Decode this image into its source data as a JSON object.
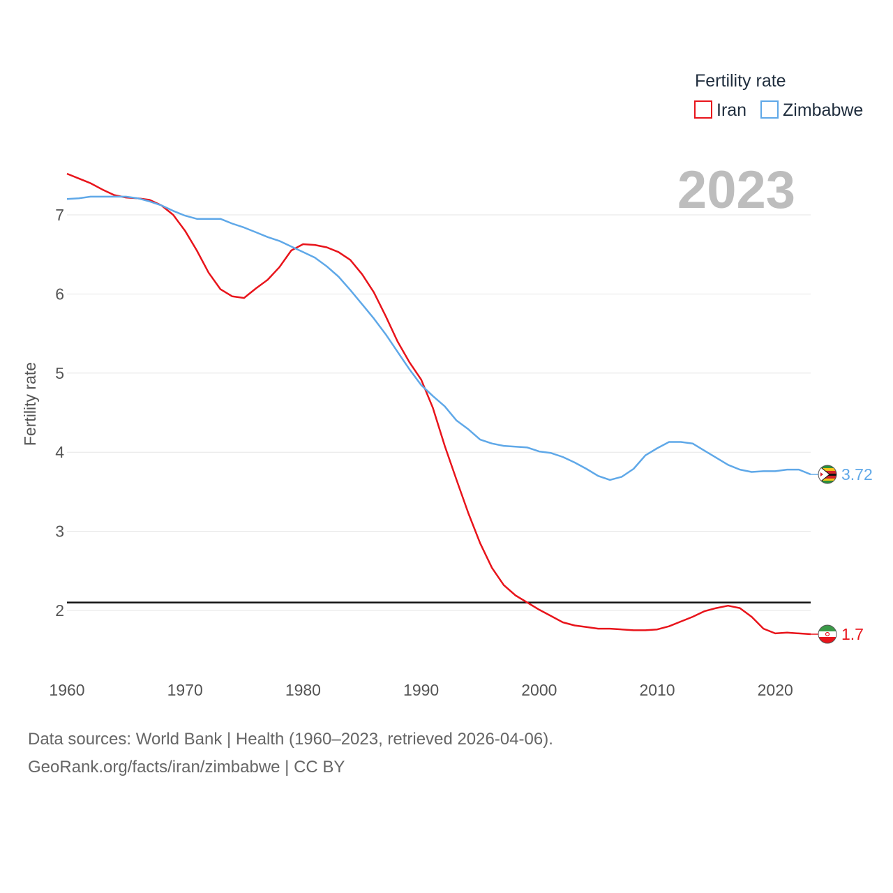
{
  "chart_data": {
    "type": "line",
    "legend_title": "Fertility rate",
    "year_label": "2023",
    "ylabel": "Fertility rate",
    "xlabel": "",
    "xlim": [
      1960,
      2023
    ],
    "ylim": [
      1.35,
      7.8
    ],
    "x_ticks": [
      "1960",
      "1970",
      "1980",
      "1990",
      "2000",
      "2010",
      "2020"
    ],
    "y_ticks": [
      "2",
      "3",
      "4",
      "5",
      "6",
      "7"
    ],
    "reference_line": 2.1,
    "series": [
      {
        "name": "Iran",
        "color": "#e8141b",
        "end_label": "1.7",
        "x": [
          1960,
          1961,
          1962,
          1963,
          1964,
          1965,
          1966,
          1967,
          1968,
          1969,
          1970,
          1971,
          1972,
          1973,
          1974,
          1975,
          1976,
          1977,
          1978,
          1979,
          1980,
          1981,
          1982,
          1983,
          1984,
          1985,
          1986,
          1987,
          1988,
          1989,
          1990,
          1991,
          1992,
          1993,
          1994,
          1995,
          1996,
          1997,
          1998,
          1999,
          2000,
          2001,
          2002,
          2003,
          2004,
          2005,
          2006,
          2007,
          2008,
          2009,
          2010,
          2011,
          2012,
          2013,
          2014,
          2015,
          2016,
          2017,
          2018,
          2019,
          2020,
          2021,
          2022,
          2023
        ],
        "values": [
          7.52,
          7.46,
          7.4,
          7.32,
          7.25,
          7.22,
          7.21,
          7.19,
          7.12,
          7.0,
          6.8,
          6.55,
          6.27,
          6.06,
          5.97,
          5.95,
          6.07,
          6.18,
          6.34,
          6.55,
          6.63,
          6.62,
          6.59,
          6.53,
          6.43,
          6.25,
          6.02,
          5.72,
          5.4,
          5.14,
          4.92,
          4.56,
          4.08,
          3.65,
          3.23,
          2.85,
          2.54,
          2.32,
          2.19,
          2.1,
          2.01,
          1.93,
          1.85,
          1.81,
          1.79,
          1.77,
          1.77,
          1.76,
          1.75,
          1.75,
          1.76,
          1.8,
          1.86,
          1.92,
          1.99,
          2.03,
          2.06,
          2.03,
          1.92,
          1.77,
          1.71,
          1.72,
          1.71,
          1.7
        ]
      },
      {
        "name": "Zimbabwe",
        "color": "#5fa8e8",
        "end_label": "3.72",
        "x": [
          1960,
          1961,
          1962,
          1963,
          1964,
          1965,
          1966,
          1967,
          1968,
          1969,
          1970,
          1971,
          1972,
          1973,
          1974,
          1975,
          1976,
          1977,
          1978,
          1979,
          1980,
          1981,
          1982,
          1983,
          1984,
          1985,
          1986,
          1987,
          1988,
          1989,
          1990,
          1991,
          1992,
          1993,
          1994,
          1995,
          1996,
          1997,
          1998,
          1999,
          2000,
          2001,
          2002,
          2003,
          2004,
          2005,
          2006,
          2007,
          2008,
          2009,
          2010,
          2011,
          2012,
          2013,
          2014,
          2015,
          2016,
          2017,
          2018,
          2019,
          2020,
          2021,
          2022,
          2023
        ],
        "values": [
          7.2,
          7.21,
          7.23,
          7.23,
          7.23,
          7.23,
          7.21,
          7.17,
          7.12,
          7.05,
          6.99,
          6.95,
          6.95,
          6.95,
          6.89,
          6.84,
          6.78,
          6.72,
          6.67,
          6.6,
          6.53,
          6.46,
          6.35,
          6.22,
          6.05,
          5.87,
          5.69,
          5.49,
          5.27,
          5.05,
          4.85,
          4.71,
          4.58,
          4.4,
          4.29,
          4.16,
          4.11,
          4.08,
          4.07,
          4.06,
          4.01,
          3.99,
          3.94,
          3.87,
          3.79,
          3.7,
          3.65,
          3.69,
          3.79,
          3.96,
          4.05,
          4.13,
          4.13,
          4.11,
          4.02,
          3.93,
          3.84,
          3.78,
          3.75,
          3.76,
          3.76,
          3.78,
          3.78,
          3.72
        ]
      }
    ]
  },
  "footer": {
    "line1": "Data sources: World Bank | Health (1960–2023, retrieved 2026-04-06).",
    "line2": "GeoRank.org/facts/iran/zimbabwe | CC BY"
  }
}
